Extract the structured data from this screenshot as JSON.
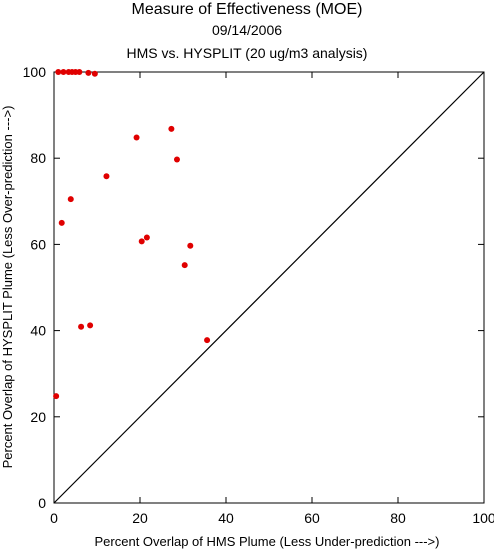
{
  "header": {
    "title": "Measure of Effectiveness (MOE)",
    "date": "09/14/2006",
    "subtitle": "HMS vs. HYSPLIT  (20 ug/m3 analysis)"
  },
  "colors": {
    "points": "#e00000",
    "axes": "#000000",
    "background": "#ffffff"
  },
  "chart_data": {
    "type": "scatter",
    "title": "Measure of Effectiveness (MOE)",
    "xlabel": "Percent Overlap of HMS Plume (Less Under-prediction --->)",
    "ylabel": "Percent Overlap of HYSPLIT Plume (Less Over-prediction --->)",
    "xlim": [
      0,
      100
    ],
    "ylim": [
      0,
      100
    ],
    "xticks": [
      0,
      20,
      40,
      60,
      80,
      100
    ],
    "yticks": [
      0,
      20,
      40,
      60,
      80,
      100
    ],
    "grid": false,
    "reference_line": {
      "from": [
        0,
        0
      ],
      "to": [
        100,
        100
      ]
    },
    "points": [
      {
        "x": 0.5,
        "y": 24.8
      },
      {
        "x": 1.0,
        "y": 100.0
      },
      {
        "x": 2.2,
        "y": 100.0
      },
      {
        "x": 3.4,
        "y": 100.0
      },
      {
        "x": 4.2,
        "y": 100.0
      },
      {
        "x": 5.0,
        "y": 100.0
      },
      {
        "x": 5.9,
        "y": 100.0
      },
      {
        "x": 8.0,
        "y": 99.8
      },
      {
        "x": 9.5,
        "y": 99.6
      },
      {
        "x": 1.8,
        "y": 65.0
      },
      {
        "x": 3.9,
        "y": 70.5
      },
      {
        "x": 6.3,
        "y": 40.9
      },
      {
        "x": 8.4,
        "y": 41.2
      },
      {
        "x": 12.2,
        "y": 75.8
      },
      {
        "x": 19.2,
        "y": 84.8
      },
      {
        "x": 20.4,
        "y": 60.7
      },
      {
        "x": 21.6,
        "y": 61.6
      },
      {
        "x": 27.3,
        "y": 86.8
      },
      {
        "x": 28.6,
        "y": 79.7
      },
      {
        "x": 30.4,
        "y": 55.2
      },
      {
        "x": 31.7,
        "y": 59.7
      },
      {
        "x": 35.6,
        "y": 37.8
      }
    ]
  }
}
